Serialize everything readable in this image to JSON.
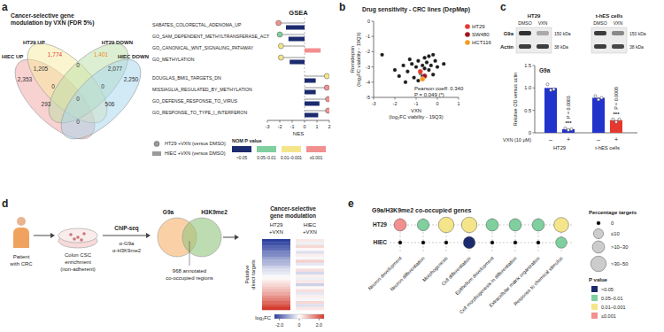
{
  "chart_data": [
    {
      "panel": "a",
      "type": "venn",
      "title": [
        "Cancer-selective gene",
        "modulation by VXN (FDR 5%)"
      ],
      "sets": [
        {
          "name": "HIEC UP",
          "color": "#f2a3a3"
        },
        {
          "name": "HT29 UP",
          "color": "#f6ec9e"
        },
        {
          "name": "HT29 DOWN",
          "color": "#b9e0a5"
        },
        {
          "name": "HIEC DOWN",
          "color": "#a6d6ee"
        }
      ],
      "regions": [
        {
          "value": 2353,
          "label": "2,353",
          "color": "#333333"
        },
        {
          "value": 1205,
          "label": "1,205",
          "color": "#333333"
        },
        {
          "value": 1774,
          "label": "1,774",
          "color": "#e5392f"
        },
        {
          "value": 0,
          "label": "0",
          "color": "#333333"
        },
        {
          "value": 1401,
          "label": "1,401",
          "color": "#f08a24"
        },
        {
          "value": 2077,
          "label": "2,077",
          "color": "#333333"
        },
        {
          "value": 2250,
          "label": "2,250",
          "color": "#333333"
        },
        {
          "value": 0,
          "label": "0",
          "color": "#333333"
        },
        {
          "value": 293,
          "label": "293",
          "color": "#333333"
        },
        {
          "value": 0,
          "label": "0",
          "color": "#333333"
        },
        {
          "value": 506,
          "label": "506",
          "color": "#333333"
        },
        {
          "value": 0,
          "label": "0",
          "color": "#333333"
        },
        {
          "value": 0,
          "label": "0",
          "color": "#333333"
        }
      ]
    },
    {
      "type": "bar",
      "title": "GSEA",
      "orientation": "horizontal",
      "categories": [
        "SABATES_COLORECTAL_ADENOMA_UP",
        "GO_SAM_DEPENDENT_METHYLTRANSFERASE_ACT",
        "GO_CANONICAL_WNT_SIGNALING_PATHWAY",
        "GO_METHYLATION",
        "DOUGLAS_BMI1_TARGETS_DN",
        "MISSIAGLIA_REGULATED_BY_METHYLATION",
        "GO_DEFENSE_RESPONSE_TO_VIRUS",
        "GO_RESPONSE_TO_TYPE_I_INTERFERON"
      ],
      "series": [
        {
          "name": "HT29 +VXN (versus DMSO)",
          "type": "lollipop",
          "marker": "circle",
          "color": "#9a9a9a",
          "values": [
            -2.1,
            -2.0,
            -1.9,
            -1.9,
            1.8,
            1.8,
            1.9,
            1.9
          ],
          "colors": [
            "#f29090",
            "#7fcf9f",
            "#f4e58a",
            "#f4e58a",
            "#f4e58a",
            "#f29090",
            "#f29090",
            "#f29090"
          ]
        },
        {
          "name": "HIEC +VXN (versus DMSO)",
          "type": "bar",
          "color": "#9a9a9a",
          "values": [
            -1.5,
            -1.3,
            1.3,
            -1.2,
            0.9,
            0.9,
            1.2,
            1.1
          ],
          "colors": [
            "#1c2a6e",
            "#1c2a6e",
            "#f29090",
            "#1c2a6e",
            "#1c2a6e",
            "#1c2a6e",
            "#1c2a6e",
            "#1c2a6e"
          ]
        }
      ],
      "x_label": "NES",
      "xlim": [
        -3,
        2
      ],
      "xticks": [
        -3,
        -2,
        -1,
        0,
        1,
        2
      ],
      "p_legend": {
        "title": "NOM P value",
        "labels": [
          ">0.05",
          "0.05–0.01",
          "0.01–0.001",
          "≤0.001"
        ],
        "colors": [
          "#1c2a6e",
          "#7fcf9f",
          "#f4e58a",
          "#f29090"
        ]
      }
    },
    {
      "panel": "b",
      "type": "scatter",
      "title": "Drug sensitivity - CRC lines (DepMap)",
      "x_label": [
        "VXN",
        "(log₂FC viability - 19Q3)"
      ],
      "y_label": [
        "Romidepsin",
        "(log₂FC viability - 19Q3)"
      ],
      "xlim": [
        -3,
        1
      ],
      "ylim": [
        -5,
        0
      ],
      "xticks": [
        -3,
        -2,
        -1,
        0,
        1
      ],
      "yticks": [
        -5,
        -4,
        -3,
        -2,
        -1,
        0
      ],
      "series": [
        {
          "color": "#1a1a1a",
          "x": [
            -1.6,
            -1.4,
            -1.2,
            -1.0,
            -0.9,
            -0.8,
            -0.7,
            -0.6,
            -0.5,
            -0.4,
            -0.3,
            -0.2,
            -1.8,
            -1.1,
            -0.6,
            -0.1,
            -2.0,
            -1.3,
            -0.9,
            -0.4,
            0.0,
            -2.6,
            -1.5,
            -0.7,
            -0.2,
            0.3
          ],
          "values": [
            -2.9,
            -3.3,
            -2.8,
            -3.0,
            -2.6,
            -3.4,
            -2.9,
            -3.1,
            -2.7,
            -3.2,
            -2.9,
            -3.5,
            -3.6,
            -3.7,
            -2.4,
            -2.6,
            -3.2,
            -2.5,
            -3.9,
            -2.3,
            -3.0,
            -2.2,
            -4.0,
            -3.6,
            -2.2,
            -2.8
          ]
        },
        {
          "name": "HT29",
          "color": "#e5392f",
          "x": [
            -0.8
          ],
          "values": [
            -3.3
          ]
        },
        {
          "name": "SW480",
          "color": "#a0141e",
          "x": [
            -0.6
          ],
          "values": [
            -3.6
          ]
        },
        {
          "name": "HCT116",
          "color": "#f39c1f",
          "x": [
            -0.7
          ],
          "values": [
            -3.8
          ]
        }
      ],
      "annotations": [
        "Pearson coeff: 0.340",
        "P = 0.049 (*)"
      ],
      "legend": "right"
    },
    {
      "panel": "c",
      "type": "western_blot",
      "groups": [
        "HT29",
        "t-hES cells"
      ],
      "lanes": [
        "DMSO",
        "VXN"
      ],
      "bands": [
        {
          "name": "G9a",
          "size": "150 kDa",
          "intensity": [
            [
              0.85,
              0.3
            ],
            [
              0.8,
              0.45
            ]
          ]
        },
        {
          "name": "Actin",
          "size": "38 kDa",
          "intensity": [
            [
              0.8,
              0.8
            ],
            [
              0.8,
              0.75
            ]
          ]
        }
      ]
    },
    {
      "type": "bar",
      "title": "G9a",
      "y_label": "Relative OD versus actin",
      "x_label": "VXN (10 μM)",
      "categories": [
        "–",
        "+",
        "–",
        "+"
      ],
      "groups": [
        "HT29",
        "t-hES cells"
      ],
      "values": [
        1.0,
        0.08,
        0.78,
        0.28
      ],
      "colors": [
        "#2233cc",
        "#2233cc",
        "#2233cc",
        "#e5392f"
      ],
      "points": [
        [
          1.08,
          0.95,
          0.97
        ],
        [
          0.1,
          0.06,
          0.08
        ],
        [
          0.82,
          0.74,
          0.78
        ],
        [
          0.3,
          0.24,
          0.3
        ]
      ],
      "significance": [
        null,
        "***",
        null,
        "***"
      ],
      "p_values": [
        null,
        "P = 0.0003",
        null,
        "P = 0.0008"
      ],
      "ylim": [
        0,
        1.5
      ],
      "yticks": [
        0,
        0.5,
        {
          "value": 1,
          "label": "1.0"
        },
        1.5
      ]
    },
    {
      "panel": "d",
      "type": "heatmap",
      "steps": {
        "patient": [
          "Patient",
          "with CRC"
        ],
        "enrichment": [
          "Colon CSC",
          "enrichment",
          "(non-adherent)"
        ],
        "method": "ChIP-seq",
        "antibodies": [
          "α-G9a",
          "α-H3K9me2"
        ]
      },
      "venn": {
        "sets": [
          {
            "name": "G9a",
            "color": "#f6b26b"
          },
          {
            "name": "H3K9me2",
            "color": "#93c47d"
          }
        ],
        "overlap": [
          "968 annotated",
          "co-occupied regions"
        ]
      },
      "title": [
        "Cancer-selective",
        "gene modulation"
      ],
      "columns": [
        [
          "HT29",
          "+VXN"
        ],
        [
          "HIEC",
          "+VXN"
        ]
      ],
      "row_label": [
        "Putative",
        "direct targets"
      ],
      "cells": [
        [
          -2.5,
          -2.3,
          -2.0,
          -1.9,
          -1.6,
          -1.5,
          -1.2,
          -1.0,
          -0.9,
          -0.6,
          -0.4,
          -0.3,
          -0.1,
          0.1,
          0.3,
          0.5,
          0.7,
          0.9,
          1.1,
          1.4,
          1.6,
          1.9,
          2.2,
          2.5
        ],
        [
          0.3,
          -0.2,
          0.5,
          0.1,
          -0.4,
          0.2,
          -0.1,
          0.6,
          -0.3,
          0.0,
          0.4,
          -0.5,
          0.2,
          -0.2,
          0.3,
          -0.6,
          0.1,
          0.4,
          -0.3,
          0.2,
          -0.1,
          0.5,
          -0.4,
          0.3
        ]
      ],
      "colorbar": {
        "label": "log₂FC",
        "range": [
          -2.5,
          2.5
        ],
        "ticks": [
          {
            "value": -2,
            "label": "-2.0"
          },
          0,
          {
            "value": 2,
            "label": "2.0"
          }
        ],
        "colors": [
          "#2b3f9e",
          "#ffffff",
          "#d33a2c"
        ]
      }
    },
    {
      "panel": "e",
      "type": "dot",
      "title": "G9a/H3K9me2 co-occupied genes",
      "categories": [
        "Neuron development",
        "Neuron differentiation",
        "Morphogenesis",
        "Cell differentiation",
        "Epithelium development",
        "Cell morphogenesis in differentiation",
        "Extracellular matrix organization",
        "Response to chemical stimulus"
      ],
      "series": [
        {
          "name": "HT29",
          "values": [
            20,
            18,
            40,
            40,
            20,
            20,
            20,
            35
          ],
          "colors": [
            "#f29090",
            "#7fcf9f",
            "#f4e58a",
            "#f4e58a",
            "#7fcf9f",
            "#7fcf9f",
            "#7fcf9f",
            "#f4e58a"
          ]
        },
        {
          "name": "HIEC",
          "values": [
            0,
            0,
            0,
            18,
            0,
            0,
            0,
            15
          ],
          "colors": [
            "#000000",
            "#000000",
            "#000000",
            "#1c2a6e",
            "#000000",
            "#000000",
            "#000000",
            "#7fcf9f"
          ]
        }
      ],
      "size_legend": {
        "title": "Percentage targets",
        "values": [
          0,
          {
            "value": 10,
            "label": "≤10"
          },
          {
            "value": 20,
            "label": ">10–30"
          },
          {
            "value": 40,
            "label": ">30–50"
          }
        ]
      },
      "color_legend": {
        "title": "P value",
        "labels": [
          ">0.05",
          "0.05–0.01",
          "0.01–0.001",
          "≤0.001"
        ],
        "colors": [
          "#1c2a6e",
          "#7fcf9f",
          "#f4e58a",
          "#f29090"
        ]
      },
      "grid": true
    }
  ]
}
